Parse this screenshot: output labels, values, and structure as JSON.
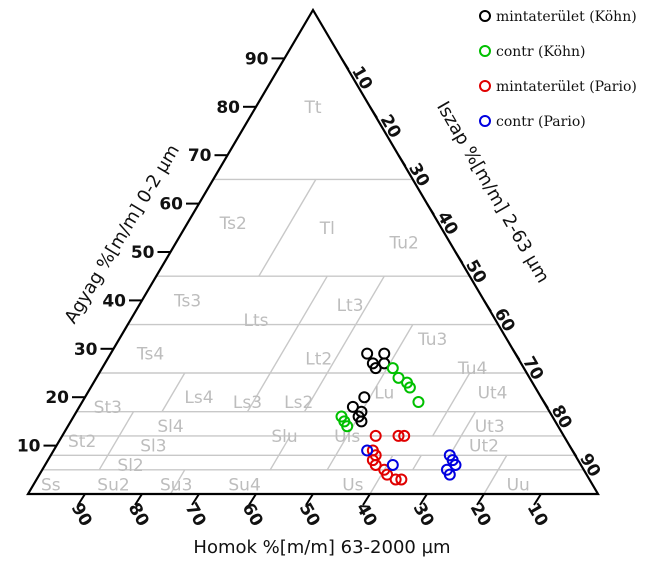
{
  "chart_data": {
    "type": "scatter",
    "subtype": "ternary",
    "axes": {
      "left": {
        "label": "Agyag %[m/m] 0-2 µm",
        "ticks": [
          "10",
          "20",
          "30",
          "40",
          "50",
          "60",
          "70",
          "80",
          "90"
        ]
      },
      "right": {
        "label": "Iszap %[m/m] 2-63 µm",
        "ticks": [
          "10",
          "20",
          "30",
          "40",
          "50",
          "60",
          "70",
          "80",
          "90"
        ]
      },
      "bottom": {
        "label": "Homok %[m/m] 63-2000 µm",
        "ticks": [
          "90",
          "80",
          "70",
          "60",
          "50",
          "40",
          "30",
          "20",
          "10"
        ]
      }
    },
    "zones": [
      "Tt",
      "Ts2",
      "Tl",
      "Tu2",
      "Ts3",
      "Lts",
      "Lt3",
      "Tu3",
      "Ts4",
      "Lt2",
      "Tu4",
      "St3",
      "Ls4",
      "Ls3",
      "Ls2",
      "Lu",
      "Ut4",
      "Sl4",
      "Ut3",
      "St2",
      "Sl3",
      "Slu",
      "Uls",
      "Ut2",
      "Sl2",
      "Ss",
      "Su2",
      "Su3",
      "Su4",
      "Us",
      "Uu"
    ],
    "legend": {
      "position": "top-right"
    },
    "series": [
      {
        "name": "mintaterület (Köhn)",
        "color": "#000000",
        "points": [
          [
            26,
            48
          ],
          [
            27,
            47
          ],
          [
            29,
            45
          ],
          [
            27,
            49
          ],
          [
            29,
            48
          ],
          [
            20,
            49
          ],
          [
            18,
            48
          ],
          [
            17,
            50
          ],
          [
            16,
            50
          ],
          [
            15,
            51
          ]
        ]
      },
      {
        "name": "contr (Köhn)",
        "color": "#00c000",
        "points": [
          [
            26,
            51
          ],
          [
            24,
            53
          ],
          [
            23,
            55
          ],
          [
            22,
            56
          ],
          [
            19,
            59
          ],
          [
            16,
            47
          ],
          [
            15,
            48
          ],
          [
            14,
            49
          ]
        ]
      },
      {
        "name": "mintaterület (Pario)",
        "color": "#e00000",
        "points": [
          [
            12,
            55
          ],
          [
            12,
            59
          ],
          [
            12,
            60
          ],
          [
            9,
            56
          ],
          [
            8,
            57
          ],
          [
            7,
            57
          ],
          [
            6,
            58
          ],
          [
            5,
            60
          ],
          [
            4,
            61
          ],
          [
            3,
            63
          ],
          [
            3,
            64
          ]
        ]
      },
      {
        "name": "contr (Pario)",
        "color": "#0000e0",
        "points": [
          [
            9,
            55
          ],
          [
            6,
            61
          ],
          [
            8,
            70
          ],
          [
            7,
            71
          ],
          [
            6,
            72
          ],
          [
            5,
            71
          ],
          [
            4,
            72
          ]
        ]
      }
    ]
  }
}
